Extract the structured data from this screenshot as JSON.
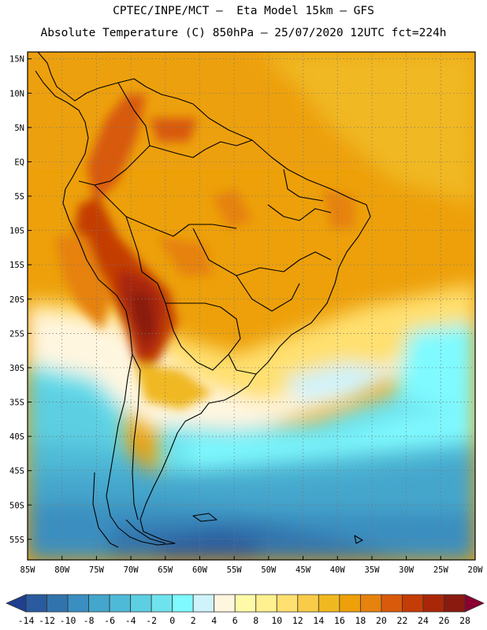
{
  "header": {
    "line1": "CPTEC/INPE/MCT –  Eta Model 15km – GFS",
    "line2": "Absolute Temperature (C) 850hPa – 25/07/2020 12UTC fct=224h"
  },
  "map": {
    "region": "South America",
    "lon_range": [
      -85,
      -20
    ],
    "lat_range": [
      -58,
      16
    ],
    "lat_ticks": [
      {
        "label": "15N",
        "lat": 15
      },
      {
        "label": "10N",
        "lat": 10
      },
      {
        "label": "5N",
        "lat": 5
      },
      {
        "label": "EQ",
        "lat": 0
      },
      {
        "label": "5S",
        "lat": -5
      },
      {
        "label": "10S",
        "lat": -10
      },
      {
        "label": "15S",
        "lat": -15
      },
      {
        "label": "20S",
        "lat": -20
      },
      {
        "label": "25S",
        "lat": -25
      },
      {
        "label": "30S",
        "lat": -30
      },
      {
        "label": "35S",
        "lat": -35
      },
      {
        "label": "40S",
        "lat": -40
      },
      {
        "label": "45S",
        "lat": -45
      },
      {
        "label": "50S",
        "lat": -50
      },
      {
        "label": "55S",
        "lat": -55
      }
    ],
    "lon_ticks": [
      {
        "label": "85W",
        "lon": -85
      },
      {
        "label": "80W",
        "lon": -80
      },
      {
        "label": "75W",
        "lon": -75
      },
      {
        "label": "70W",
        "lon": -70
      },
      {
        "label": "65W",
        "lon": -65
      },
      {
        "label": "60W",
        "lon": -60
      },
      {
        "label": "55W",
        "lon": -55
      },
      {
        "label": "50W",
        "lon": -50
      },
      {
        "label": "45W",
        "lon": -45
      },
      {
        "label": "40W",
        "lon": -40
      },
      {
        "label": "35W",
        "lon": -35
      },
      {
        "label": "30W",
        "lon": -30
      },
      {
        "label": "25W",
        "lon": -25
      },
      {
        "label": "20W",
        "lon": -20
      }
    ],
    "grid": "dotted"
  },
  "colorbar": {
    "labels": [
      "-14",
      "-12",
      "-10",
      "-8",
      "-6",
      "-4",
      "-2",
      "0",
      "2",
      "4",
      "6",
      "8",
      "10",
      "12",
      "14",
      "16",
      "18",
      "20",
      "22",
      "24",
      "26",
      "28"
    ],
    "colors": [
      "#1f3f8f",
      "#2a5b9e",
      "#3174ad",
      "#3a8fc0",
      "#44a6cc",
      "#4fbad7",
      "#5ccfe2",
      "#6ee3ee",
      "#7ffaff",
      "#cff3fb",
      "#fff6e0",
      "#fffaa8",
      "#fff090",
      "#ffe070",
      "#f8cc48",
      "#f0b820",
      "#eda00a",
      "#e6820e",
      "#d85a0a",
      "#c43c06",
      "#a92708",
      "#8a1a10",
      "#6e1414",
      "#8a0030"
    ]
  },
  "chart_data": {
    "type": "heatmap",
    "title": "CPTEC/INPE/MCT –  Eta Model 15km – GFS",
    "subtitle": "Absolute Temperature (C) 850hPa – 25/07/2020 12UTC fct=224h",
    "xlabel": "",
    "ylabel": "",
    "xlim": [
      -85,
      -20
    ],
    "ylim": [
      -58,
      16
    ],
    "colorbar_levels": [
      -14,
      -12,
      -10,
      -8,
      -6,
      -4,
      -2,
      0,
      2,
      4,
      6,
      8,
      10,
      12,
      14,
      16,
      18,
      20,
      22,
      24,
      26,
      28
    ],
    "grid": true
  }
}
